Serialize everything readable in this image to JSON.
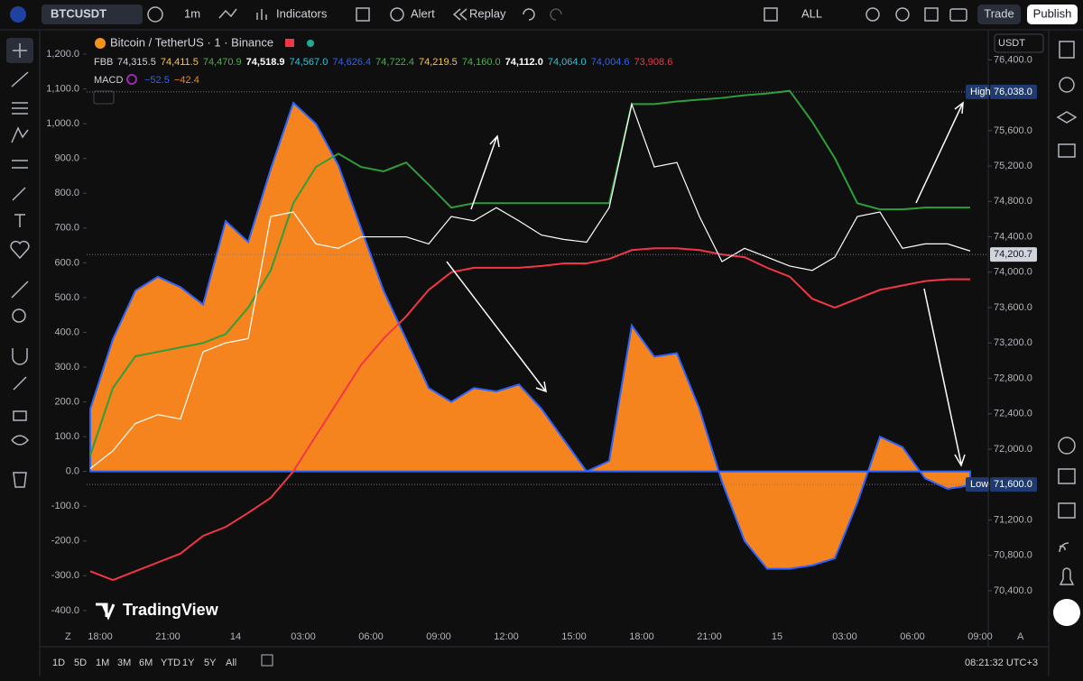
{
  "toolbar": {
    "symbol": "BTCUSDT",
    "interval": "1m",
    "indicators": "Indicators",
    "alert": "Alert",
    "replay": "Replay",
    "range": "ALL",
    "trade": "Trade",
    "publish": "Publish",
    "currency": "USDT"
  },
  "legend": {
    "title": "Bitcoin / TetherUS · 1 · Binance",
    "fbb_label": "FBB",
    "fbb_values": [
      "74,315.5",
      "74,411.5",
      "74,470.9",
      "74,518.9",
      "74,567.0",
      "74,626.4",
      "74,722.4",
      "74,219.5",
      "74,160.0",
      "74,112.0",
      "74,064.0",
      "74,004.6",
      "73,908.6"
    ],
    "macd_label": "MACD",
    "macd_values": [
      "−52.5",
      "−42.4"
    ]
  },
  "watermark": "TradingView",
  "time_axis": [
    "18:00",
    "21:00",
    "14",
    "03:00",
    "06:00",
    "09:00",
    "12:00",
    "15:00",
    "18:00",
    "21:00",
    "15",
    "03:00",
    "06:00",
    "09:00"
  ],
  "chart_data": {
    "type": "line",
    "ylim": [
      -460,
      1265
    ],
    "yticks": [
      {
        "value": -400,
        "label": "-400.0"
      },
      {
        "value": -300,
        "label": "-300.0"
      },
      {
        "value": -200,
        "label": "-200.0"
      },
      {
        "value": -100,
        "label": "-100.0"
      },
      {
        "value": 0,
        "label": "0.0"
      },
      {
        "value": 100,
        "label": "100.0"
      },
      {
        "value": 200,
        "label": "200.0"
      },
      {
        "value": 300,
        "label": "300.0"
      },
      {
        "value": 400,
        "label": "400.0"
      },
      {
        "value": 500,
        "label": "500.0"
      },
      {
        "value": 600,
        "label": "600.0"
      },
      {
        "value": 700,
        "label": "700.0"
      },
      {
        "value": 800,
        "label": "800.0"
      },
      {
        "value": 900,
        "label": "900.0"
      },
      {
        "value": 1000,
        "label": "1,000.0"
      },
      {
        "value": 1100,
        "label": "1,100.0"
      },
      {
        "value": 1200,
        "label": "1,200.0"
      }
    ],
    "y2lim": [
      69940,
      76720
    ],
    "y2ticks": [
      {
        "value": 70400,
        "label": "70,400.0"
      },
      {
        "value": 70800,
        "label": "70,800.0"
      },
      {
        "value": 71200,
        "label": "71,200.0"
      },
      {
        "value": 71600,
        "label": "71,600.0"
      },
      {
        "value": 72000,
        "label": "72,000.0"
      },
      {
        "value": 72400,
        "label": "72,400.0"
      },
      {
        "value": 72800,
        "label": "72,800.0"
      },
      {
        "value": 73200,
        "label": "73,200.0"
      },
      {
        "value": 73600,
        "label": "73,600.0"
      },
      {
        "value": 74000,
        "label": "74,000.0"
      },
      {
        "value": 74400,
        "label": "74,400.0"
      },
      {
        "value": 74800,
        "label": "74,800.0"
      },
      {
        "value": 75200,
        "label": "75,200.0"
      },
      {
        "value": 75600,
        "label": "75,600.0"
      },
      {
        "value": 76000,
        "label": "76,000.0"
      },
      {
        "value": 76400,
        "label": "76,400.0"
      }
    ],
    "series": [
      {
        "name": "MACD",
        "color": "#f5841f",
        "values": [
          180,
          380,
          520,
          560,
          530,
          480,
          720,
          660,
          870,
          1060,
          1000,
          880,
          700,
          520,
          380,
          240,
          200,
          240,
          230,
          250,
          180,
          90,
          0,
          30,
          420,
          330,
          340,
          180,
          -30,
          -200,
          -280,
          -280,
          -270,
          -250,
          -90,
          100,
          70,
          -20,
          -50,
          -40
        ]
      },
      {
        "name": "FBB upper",
        "color": "#2e9e3a",
        "axis": "y2",
        "values": [
          71930,
          72690,
          73050,
          73100,
          73150,
          73200,
          73300,
          73600,
          74020,
          74780,
          75190,
          75340,
          75190,
          75140,
          75240,
          74990,
          74730,
          74780,
          74780,
          74780,
          74780,
          74780,
          74780,
          74780,
          75900,
          75900,
          75930,
          75950,
          75970,
          76000,
          76020,
          76050,
          75700,
          75290,
          74780,
          74710,
          74710,
          74730,
          74730,
          74730
        ]
      },
      {
        "name": "FBB lower",
        "color": "#f23645",
        "axis": "y2",
        "values": [
          70620,
          70520,
          70620,
          70720,
          70820,
          71020,
          71120,
          71280,
          71450,
          71750,
          72150,
          72550,
          72950,
          73250,
          73500,
          73800,
          74000,
          74050,
          74050,
          74050,
          74070,
          74100,
          74100,
          74150,
          74250,
          74270,
          74270,
          74250,
          74200,
          74170,
          74050,
          73950,
          73700,
          73600,
          73700,
          73800,
          73850,
          73900,
          73920,
          73920
        ]
      },
      {
        "name": "BTCUSDT",
        "color": "#ffffff",
        "axis": "y2",
        "values": [
          71780,
          71980,
          72290,
          72390,
          72340,
          73100,
          73200,
          73250,
          74630,
          74680,
          74320,
          74270,
          74400,
          74400,
          74400,
          74320,
          74630,
          74580,
          74730,
          74580,
          74420,
          74370,
          74340,
          74730,
          75900,
          75190,
          75240,
          74630,
          74120,
          74270,
          74170,
          74070,
          74020,
          74170,
          74630,
          74680,
          74270,
          74320,
          74320,
          74240
        ]
      }
    ],
    "annotations": [
      {
        "label": "High",
        "value": {
          "value": 76038,
          "label": "76,038.0"
        }
      },
      {
        "label": "Low",
        "value": {
          "value": 71600,
          "label": "71,600.0"
        }
      },
      {
        "value": {
          "value": 74200.7,
          "label": "74,200.7"
        }
      }
    ]
  },
  "bottom_bar": {
    "ranges": [
      "1D",
      "5D",
      "1M",
      "3M",
      "6M",
      "YTD",
      "1Y",
      "5Y",
      "All"
    ],
    "clock": "08:21:32 UTC+3"
  }
}
